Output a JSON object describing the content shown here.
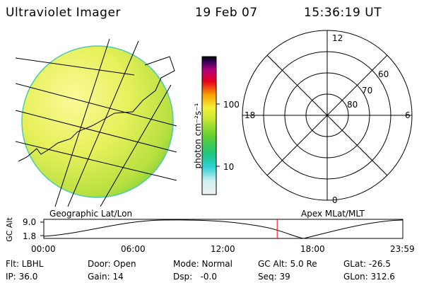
{
  "header": {
    "title": "Ultraviolet Imager",
    "date": "19 Feb 07",
    "time": "15:36:19 UT"
  },
  "image_panel": {
    "label": "Geographic Lat/Lon"
  },
  "colorbar": {
    "label": "photon cm⁻²s⁻¹",
    "ticks": [
      "100",
      "10"
    ]
  },
  "polar_plot": {
    "label": "Apex MLat/MLT",
    "mlt_labels": {
      "top": "12",
      "left": "18",
      "right": "6",
      "bottom": "0"
    },
    "lat_labels": [
      "60",
      "70",
      "80"
    ]
  },
  "timeline": {
    "ylabel": "GC Alt",
    "y_ticks": [
      "9.0",
      "1.8"
    ],
    "x_ticks": [
      "00:00",
      "06:00",
      "12:00",
      "18:00",
      "23:59"
    ],
    "current_time_fraction": 0.65
  },
  "status": {
    "rows": [
      [
        "Flt: LBHL",
        "Door: Open",
        "Mode: Normal",
        "GC Alt: 5.0 Re",
        "GLat: -26.5"
      ],
      [
        "IP: 36.0",
        "Gain: 14",
        "Dsp:   -0.0",
        "Seq: 39",
        "GLon: 312.6"
      ]
    ]
  },
  "colors": {
    "marker": "#ff0000"
  }
}
